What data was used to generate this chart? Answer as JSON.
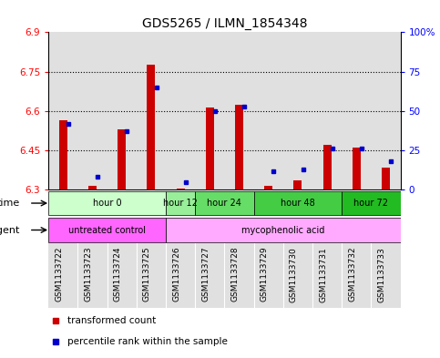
{
  "title": "GDS5265 / ILMN_1854348",
  "samples": [
    "GSM1133722",
    "GSM1133723",
    "GSM1133724",
    "GSM1133725",
    "GSM1133726",
    "GSM1133727",
    "GSM1133728",
    "GSM1133729",
    "GSM1133730",
    "GSM1133731",
    "GSM1133732",
    "GSM1133733"
  ],
  "red_values": [
    6.565,
    6.315,
    6.53,
    6.775,
    6.305,
    6.615,
    6.625,
    6.315,
    6.335,
    6.47,
    6.46,
    6.385
  ],
  "blue_percentiles": [
    42,
    8,
    37,
    65,
    5,
    50,
    53,
    12,
    13,
    26,
    26,
    18
  ],
  "y_min": 6.3,
  "y_max": 6.9,
  "y_ticks": [
    6.3,
    6.45,
    6.6,
    6.75,
    6.9
  ],
  "right_y_ticks": [
    0,
    25,
    50,
    75,
    100
  ],
  "right_y_labels": [
    "0",
    "25",
    "50",
    "75",
    "100%"
  ],
  "dotted_lines": [
    6.45,
    6.6,
    6.75
  ],
  "time_groups": [
    {
      "label": "hour 0",
      "start": 0,
      "end": 3
    },
    {
      "label": "hour 12",
      "start": 4,
      "end": 4
    },
    {
      "label": "hour 24",
      "start": 5,
      "end": 6
    },
    {
      "label": "hour 48",
      "start": 7,
      "end": 9
    },
    {
      "label": "hour 72",
      "start": 10,
      "end": 11
    }
  ],
  "time_colors": [
    "#ccffcc",
    "#99ee99",
    "#66dd66",
    "#44cc44",
    "#22bb22"
  ],
  "agent_groups": [
    {
      "label": "untreated control",
      "start": 0,
      "end": 3
    },
    {
      "label": "mycophenolic acid",
      "start": 4,
      "end": 11
    }
  ],
  "agent_colors": [
    "#ff66ff",
    "#ffaaff"
  ],
  "bar_color": "#cc0000",
  "dot_color": "#0000cc",
  "col_bg": "#c8c8c8",
  "legend_red": "transformed count",
  "legend_blue": "percentile rank within the sample"
}
